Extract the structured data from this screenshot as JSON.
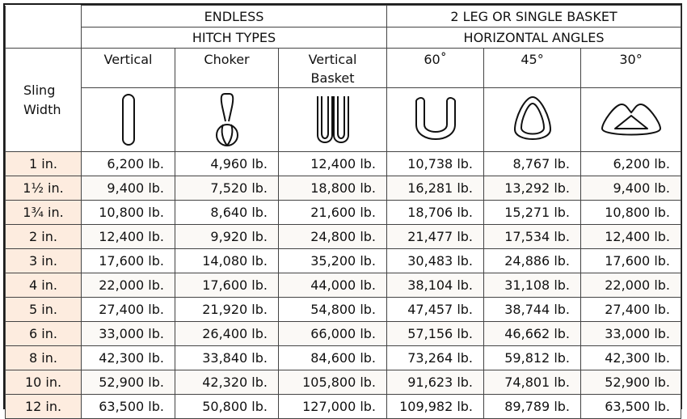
{
  "headers": {
    "group_left": "ENDLESS",
    "group_left_sub": "HITCH TYPES",
    "group_right": "2 LEG OR SINGLE BASKET",
    "group_right_sub": "HORIZONTAL ANGLES",
    "sling_width_line1": "Sling",
    "sling_width_line2": "Width",
    "columns": [
      {
        "line1": "Vertical",
        "line2": "",
        "icon": "vertical-loop-icon"
      },
      {
        "line1": "Choker",
        "line2": "",
        "icon": "choker-hitch-icon"
      },
      {
        "line1": "Vertical",
        "line2": "Basket",
        "icon": "vertical-basket-icon"
      },
      {
        "line1": "60˚",
        "line2": "",
        "icon": "basket-60-icon"
      },
      {
        "line1": "45°",
        "line2": "",
        "icon": "basket-45-icon"
      },
      {
        "line1": "30°",
        "line2": "",
        "icon": "basket-30-icon"
      }
    ]
  },
  "rows": [
    {
      "width": "1 in.",
      "values": [
        "6,200 lb.",
        "4,960 lb.",
        "12,400 lb.",
        "10,738 lb.",
        "8,767 lb.",
        "6,200 lb."
      ]
    },
    {
      "width": "1½ in.",
      "values": [
        "9,400 lb.",
        "7,520 lb.",
        "18,800 lb.",
        "16,281 lb.",
        "13,292 lb.",
        "9,400 lb."
      ]
    },
    {
      "width": "1¾ in.",
      "values": [
        "10,800 lb.",
        "8,640 lb.",
        "21,600 lb.",
        "18,706 lb.",
        "15,271 lb.",
        "10,800 lb."
      ]
    },
    {
      "width": "2 in.",
      "values": [
        "12,400 lb.",
        "9,920 lb.",
        "24,800 lb.",
        "21,477 lb.",
        "17,534 lb.",
        "12,400 lb."
      ]
    },
    {
      "width": "3 in.",
      "values": [
        "17,600 lb.",
        "14,080 lb.",
        "35,200 lb.",
        "30,483 lb.",
        "24,886 lb.",
        "17,600 lb."
      ]
    },
    {
      "width": "4 in.",
      "values": [
        "22,000 lb.",
        "17,600 lb.",
        "44,000 lb.",
        "38,104 lb.",
        "31,108 lb.",
        "22,000 lb."
      ]
    },
    {
      "width": "5 in.",
      "values": [
        "27,400 lb.",
        "21,920 lb.",
        "54,800 lb.",
        "47,457 lb.",
        "38,744 lb.",
        "27,400 lb."
      ]
    },
    {
      "width": "6 in.",
      "values": [
        "33,000 lb.",
        "26,400 lb.",
        "66,000 lb.",
        "57,156 lb.",
        "46,662 lb.",
        "33,000 lb."
      ]
    },
    {
      "width": "8 in.",
      "values": [
        "42,300 lb.",
        "33,840 lb.",
        "84,600 lb.",
        "73,264 lb.",
        "59,812 lb.",
        "42,300 lb."
      ]
    },
    {
      "width": "10 in.",
      "values": [
        "52,900 lb.",
        "42,320 lb.",
        "105,800 lb.",
        "91,623 lb.",
        "74,801 lb.",
        "52,900 lb."
      ]
    },
    {
      "width": "12 in.",
      "values": [
        "63,500 lb.",
        "50,800 lb.",
        "127,000 lb.",
        "109,982 lb.",
        "89,789 lb.",
        "63,500 lb."
      ]
    }
  ]
}
